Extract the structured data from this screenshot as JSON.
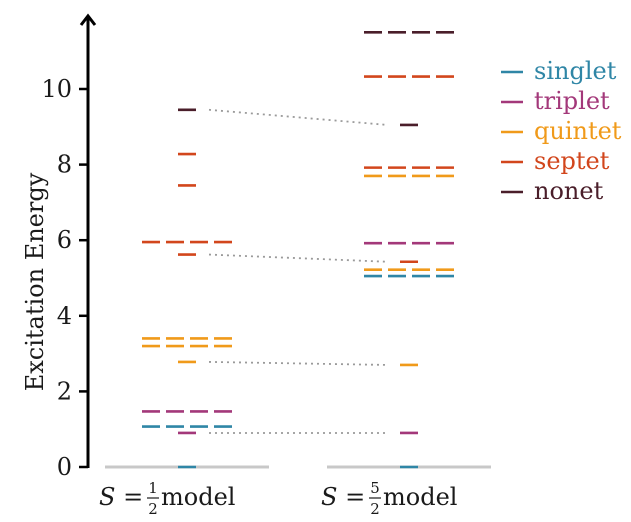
{
  "chart_data": {
    "type": "level-diagram",
    "ylabel": "Excitation Energy",
    "ylim": [
      0,
      11.8
    ],
    "yticks": [
      "0",
      "2",
      "4",
      "6",
      "8",
      "10"
    ],
    "legend_position": "top-right",
    "series": [
      {
        "name": "singlet",
        "color": "#2f86a6"
      },
      {
        "name": "triplet",
        "color": "#a3387a"
      },
      {
        "name": "quintet",
        "color": "#f09a1a"
      },
      {
        "name": "septet",
        "color": "#d2461c"
      },
      {
        "name": "nonet",
        "color": "#4a1e2a"
      }
    ],
    "groups": [
      {
        "label_prefix": "S = ",
        "label_frac_num": "1",
        "label_frac_den": "2",
        "label_suffix": " model",
        "levels": [
          {
            "energy": 0.0,
            "mult": "singlet",
            "degeneracy": 1
          },
          {
            "energy": 0.9,
            "mult": "triplet",
            "degeneracy": 1
          },
          {
            "energy": 1.07,
            "mult": "singlet",
            "degeneracy": 4
          },
          {
            "energy": 1.47,
            "mult": "triplet",
            "degeneracy": 4
          },
          {
            "energy": 2.78,
            "mult": "quintet",
            "degeneracy": 1
          },
          {
            "energy": 3.2,
            "mult": "quintet",
            "degeneracy": 4
          },
          {
            "energy": 3.4,
            "mult": "quintet",
            "degeneracy": 4
          },
          {
            "energy": 5.62,
            "mult": "septet",
            "degeneracy": 1
          },
          {
            "energy": 5.95,
            "mult": "septet",
            "degeneracy": 4
          },
          {
            "energy": 7.45,
            "mult": "septet",
            "degeneracy": 1
          },
          {
            "energy": 8.28,
            "mult": "septet",
            "degeneracy": 1
          },
          {
            "energy": 9.45,
            "mult": "nonet",
            "degeneracy": 1
          }
        ]
      },
      {
        "label_prefix": "S = ",
        "label_frac_num": "5",
        "label_frac_den": "2",
        "label_suffix": " model",
        "levels": [
          {
            "energy": 0.0,
            "mult": "singlet",
            "degeneracy": 1
          },
          {
            "energy": 0.9,
            "mult": "triplet",
            "degeneracy": 1
          },
          {
            "energy": 2.7,
            "mult": "quintet",
            "degeneracy": 1
          },
          {
            "energy": 5.05,
            "mult": "singlet",
            "degeneracy": 4
          },
          {
            "energy": 5.22,
            "mult": "quintet",
            "degeneracy": 4
          },
          {
            "energy": 5.43,
            "mult": "septet",
            "degeneracy": 1
          },
          {
            "energy": 5.92,
            "mult": "triplet",
            "degeneracy": 4
          },
          {
            "energy": 7.7,
            "mult": "quintet",
            "degeneracy": 4
          },
          {
            "energy": 7.92,
            "mult": "septet",
            "degeneracy": 4
          },
          {
            "energy": 9.05,
            "mult": "nonet",
            "degeneracy": 1
          },
          {
            "energy": 10.33,
            "mult": "septet",
            "degeneracy": 4
          },
          {
            "energy": 11.5,
            "mult": "nonet",
            "degeneracy": 4
          }
        ]
      }
    ],
    "connectors": [
      {
        "from_energy": 0.9,
        "to_energy": 0.9
      },
      {
        "from_energy": 2.78,
        "to_energy": 2.7
      },
      {
        "from_energy": 5.62,
        "to_energy": 5.43
      },
      {
        "from_energy": 9.45,
        "to_energy": 9.05
      }
    ]
  }
}
